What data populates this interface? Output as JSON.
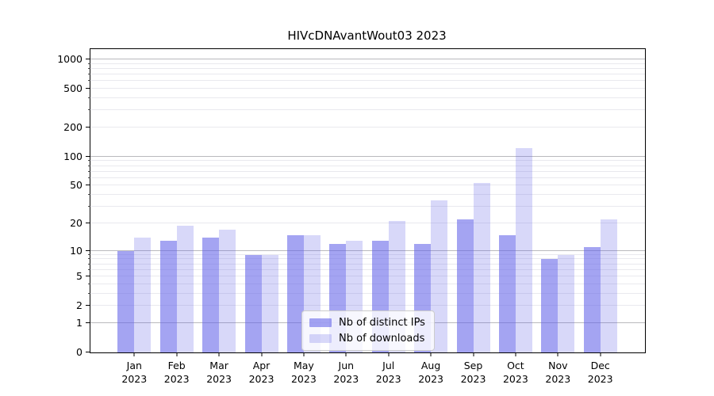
{
  "title": "HIVcDNAvantWout03 2023",
  "legend": {
    "items": [
      {
        "label": "Nb of distinct IPs"
      },
      {
        "label": "Nb of downloads"
      }
    ]
  },
  "colors": {
    "bar_distinct_ips": "rgba(99,99,233,0.58)",
    "bar_downloads": "rgba(99,99,233,0.25)",
    "grid_major": "#b9b9bd",
    "grid_minor": "#e9e9ee",
    "axis": "#000000"
  },
  "chart_data": {
    "type": "bar",
    "title": "HIVcDNAvantWout03 2023",
    "categories": [
      "Jan 2023",
      "Feb 2023",
      "Mar 2023",
      "Apr 2023",
      "May 2023",
      "Jun 2023",
      "Jul 2023",
      "Aug 2023",
      "Sep 2023",
      "Oct 2023",
      "Nov 2023",
      "Dec 2023"
    ],
    "series": [
      {
        "name": "Nb of distinct IPs",
        "color": "rgba(99,99,233,0.58)",
        "values": [
          10,
          13,
          14,
          9,
          15,
          12,
          13,
          12,
          22,
          15,
          8,
          11
        ]
      },
      {
        "name": "Nb of downloads",
        "color": "rgba(99,99,233,0.25)",
        "values": [
          14,
          19,
          17,
          9,
          15,
          13,
          21,
          35,
          53,
          123,
          9,
          22
        ]
      }
    ],
    "xlabel": "",
    "ylabel": "",
    "yscale": "log1p",
    "ylim": [
      0,
      1275
    ],
    "yaxis": {
      "tick_values": [
        0,
        1,
        2,
        5,
        10,
        20,
        50,
        100,
        200,
        500,
        1000
      ],
      "tick_labels": [
        "0",
        "1",
        "2",
        "5",
        "10",
        "20",
        "50",
        "100",
        "200",
        "500",
        "1000"
      ],
      "major_grid": [
        1,
        10,
        100,
        1000
      ],
      "minor_grid": [
        2,
        3,
        4,
        5,
        6,
        7,
        8,
        9,
        20,
        30,
        40,
        50,
        60,
        70,
        80,
        90,
        200,
        300,
        400,
        500,
        600,
        700,
        800,
        900
      ],
      "minor_ticks": [
        3,
        4,
        6,
        7,
        8,
        9,
        30,
        40,
        60,
        70,
        80,
        90,
        300,
        400,
        600,
        700,
        800,
        900
      ]
    },
    "grid": true,
    "legend_position": "lower center"
  }
}
